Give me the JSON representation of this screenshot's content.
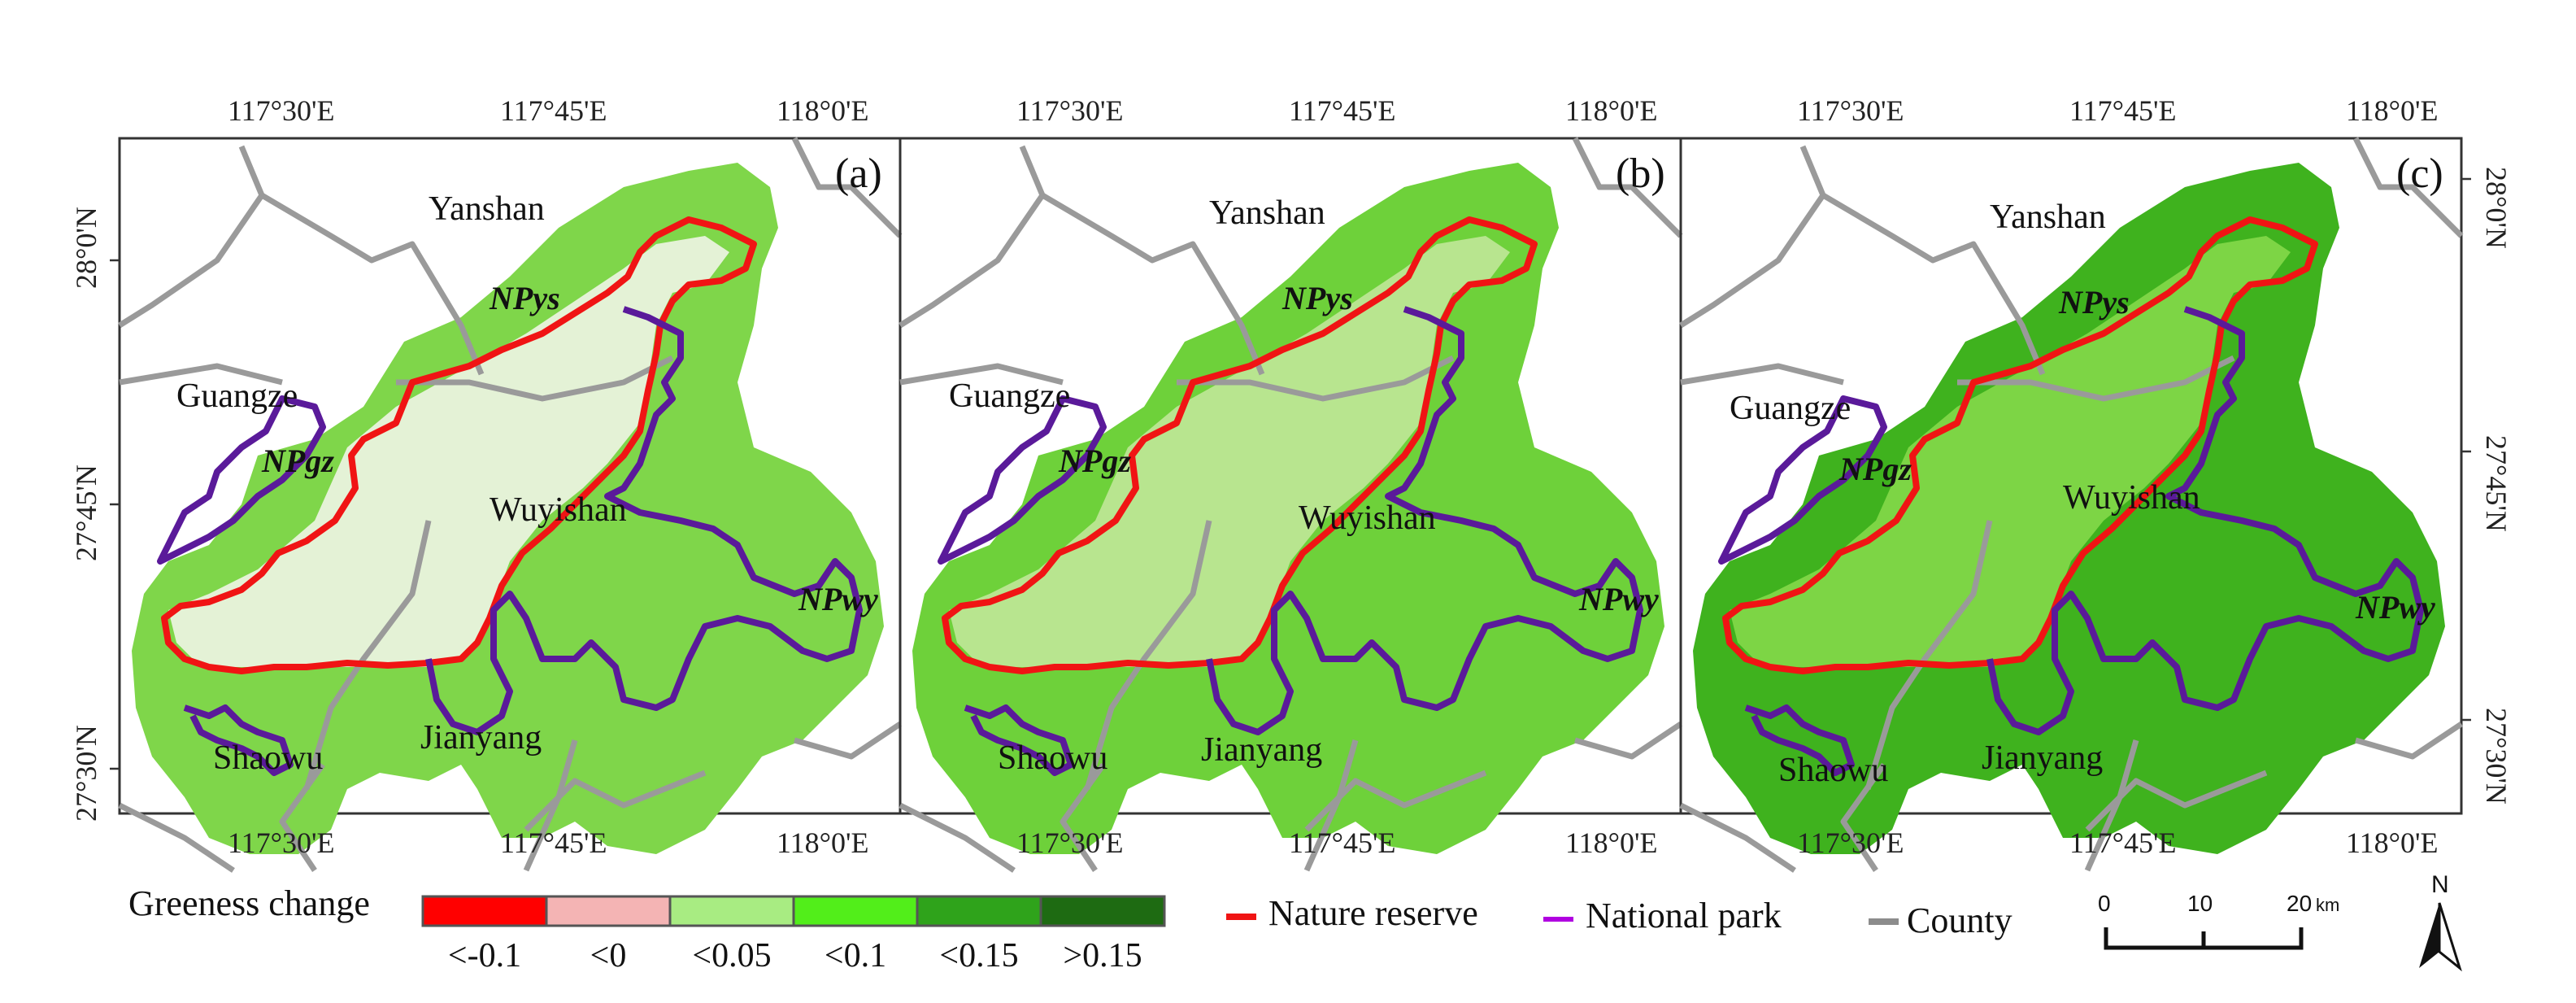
{
  "panels": [
    {
      "label": "(a)",
      "fill_color": "#7fd64a",
      "core_color": "#e4f2d6",
      "places": {
        "yanshan": "Yanshan",
        "guangze": "Guangze",
        "wuyishan": "Wuyishan",
        "jianyang": "Jianyang",
        "shaowu": "Shaowu"
      },
      "parks": {
        "ys": "NPys",
        "gz": "NPgz",
        "wy": "NPwy"
      },
      "lon_top": [
        "117°30'E",
        "117°45'E",
        "118°0'E"
      ],
      "lon_bottom": [
        "117°30'E",
        "117°45'E",
        "118°0'E"
      ],
      "lat_left": [
        "28°0'N",
        "27°45'N",
        "27°30'N"
      ]
    },
    {
      "label": "(b)",
      "fill_color": "#6ed13a",
      "core_color": "#b8e58f",
      "places": {
        "yanshan": "Yanshan",
        "guangze": "Guangze",
        "wuyishan": "Wuyishan",
        "jianyang": "Jianyang",
        "shaowu": "Shaowu"
      },
      "parks": {
        "ys": "NPys",
        "gz": "NPgz",
        "wy": "NPwy"
      },
      "lon_top": [
        "117°30'E",
        "117°45'E",
        "118°0'E"
      ],
      "lon_bottom": [
        "117°30'E",
        "117°45'E",
        "118°0'E"
      ]
    },
    {
      "label": "(c)",
      "fill_color": "#3fb21e",
      "core_color": "#7dd545",
      "places": {
        "yanshan": "Yanshan",
        "guangze": "Guangze",
        "wuyishan": "Wuyishan",
        "jianyang": "Jianyang",
        "shaowu": "Shaowu"
      },
      "parks": {
        "ys": "NPys",
        "gz": "NPgz",
        "wy": "NPwy"
      },
      "lon_top": [
        "117°30'E",
        "117°45'E",
        "118°0'E"
      ],
      "lon_bottom": [
        "117°30'E",
        "117°45'E",
        "118°0'E"
      ],
      "lat_right": [
        "28°0'N",
        "27°45'N",
        "27°30'N"
      ]
    }
  ],
  "legend": {
    "title": "Greeness change",
    "classes": [
      {
        "label": "<-0.1",
        "color": "#ff0000"
      },
      {
        "label": "<0",
        "color": "#f4b4b4"
      },
      {
        "label": "<0.05",
        "color": "#a8ec82"
      },
      {
        "label": "<0.1",
        "color": "#52ee1a"
      },
      {
        "label": "<0.15",
        "color": "#2fa31b"
      },
      {
        "label": ">0.15",
        "color": "#1e6b12"
      }
    ],
    "lines": [
      {
        "label": "Nature reserve",
        "color": "#f01414"
      },
      {
        "label": "National park",
        "color": "#b000e0"
      },
      {
        "label": "County",
        "color": "#8c8c8c"
      }
    ]
  },
  "scalebar": {
    "ticks": [
      "0",
      "10",
      "20"
    ],
    "unit": "km"
  },
  "north_arrow": {
    "label": "N"
  }
}
